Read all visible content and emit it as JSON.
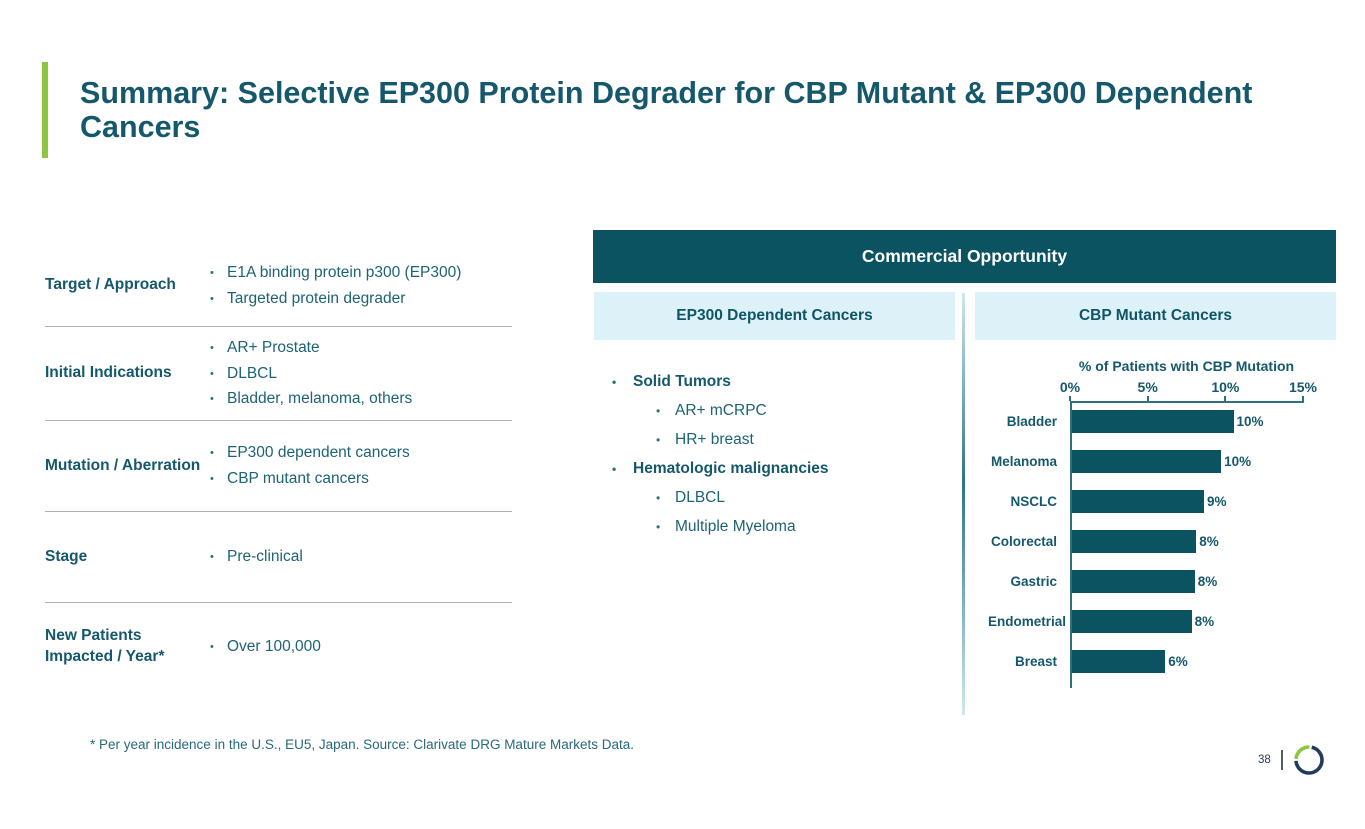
{
  "slide": {
    "title": "Summary: Selective EP300 Protein Degrader for CBP Mutant & EP300 Dependent Cancers",
    "footnote": "* Per year incidence in the U.S., EU5, Japan. Source: Clarivate DRG Mature Markets Data.",
    "page_number": "38"
  },
  "colors": {
    "accent_green": "#8DC63F",
    "brand_teal": "#0C5362",
    "text_teal": "#15586C",
    "light_blue": "#DDF1F8",
    "logo_navy": "#233A5C"
  },
  "fact_table": {
    "rows": [
      {
        "label": "Target / Approach",
        "bullets": [
          "E1A binding protein p300 (EP300)",
          "Targeted protein degrader"
        ]
      },
      {
        "label": "Initial Indications",
        "bullets": [
          "AR+ Prostate",
          "DLBCL",
          "Bladder, melanoma, others"
        ]
      },
      {
        "label": "Mutation / Aberration",
        "bullets": [
          "EP300 dependent cancers",
          "CBP mutant cancers"
        ]
      },
      {
        "label": "Stage",
        "bullets": [
          "Pre-clinical"
        ]
      },
      {
        "label": "New Patients Impacted / Year*",
        "bullets": [
          "Over 100,000"
        ]
      }
    ]
  },
  "commercial": {
    "header": "Commercial Opportunity",
    "left_header": "EP300 Dependent Cancers",
    "right_header": "CBP Mutant Cancers",
    "ep300_list": [
      {
        "label": "Solid Tumors",
        "children": [
          "AR+ mCRPC",
          "HR+ breast"
        ]
      },
      {
        "label": "Hematologic malignancies",
        "children": [
          "DLBCL",
          "Multiple Myeloma"
        ]
      }
    ]
  },
  "chart_data": {
    "type": "bar",
    "orientation": "horizontal",
    "title": "% of Patients with CBP Mutation",
    "categories": [
      "Bladder",
      "Melanoma",
      "NSCLC",
      "Colorectal",
      "Gastric",
      "Endometrial",
      "Breast"
    ],
    "values": [
      10.4,
      9.6,
      8.5,
      8.0,
      7.9,
      7.7,
      6.0
    ],
    "labels": [
      "10%",
      "10%",
      "9%",
      "8%",
      "8%",
      "8%",
      "6%"
    ],
    "xlim": [
      0,
      15
    ],
    "ticks": [
      "0%",
      "5%",
      "10%",
      "15%"
    ],
    "tick_values": [
      0,
      5,
      10,
      15
    ],
    "bar_color": "#0C5362",
    "grid": false,
    "value_labels_position": "end-of-bar",
    "axis_position": "top"
  }
}
